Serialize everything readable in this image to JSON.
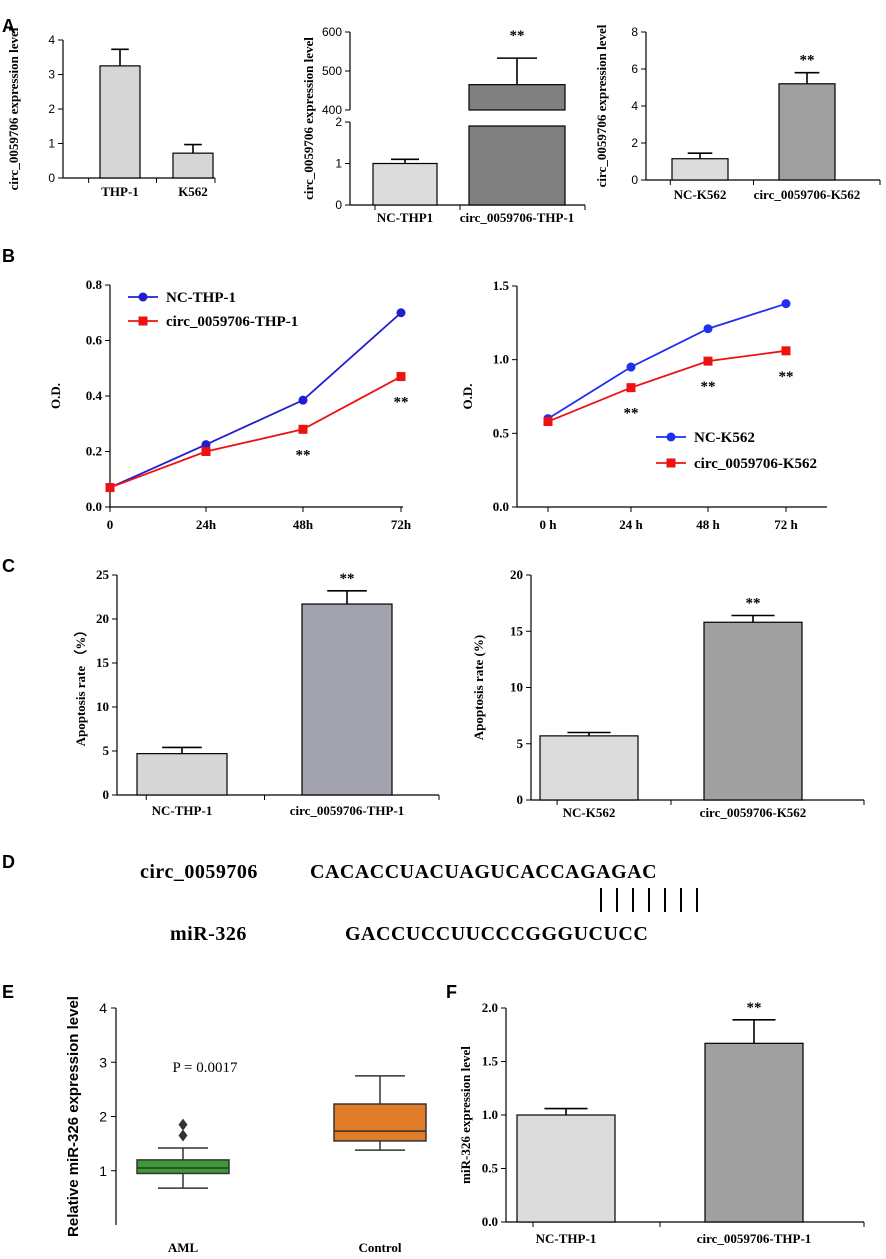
{
  "panels": {
    "A": "A",
    "B": "B",
    "C": "C",
    "D": "D",
    "E": "E",
    "F": "F"
  },
  "chart_data": [
    {
      "id": "A1",
      "type": "bar",
      "ylabel": "circ_0059706 expression level",
      "categories": [
        "THP-1",
        "K562"
      ],
      "values": [
        3.25,
        0.72
      ],
      "errors": [
        0.48,
        0.25
      ],
      "colors": [
        "#d6d6d6",
        "#d6d6d6"
      ],
      "ylim": [
        0,
        4
      ],
      "yticks": [
        0,
        1,
        2,
        3,
        4
      ],
      "stars": [
        "",
        ""
      ]
    },
    {
      "id": "A2",
      "type": "bar",
      "ylabel": "circ_0059706 expression level",
      "categories": [
        "NC-THP1",
        "circ_0059706-THP-1"
      ],
      "values": [
        1.0,
        465
      ],
      "errors": [
        0.1,
        68
      ],
      "colors": [
        "#dcdcdc",
        "#808080"
      ],
      "broken_axis": {
        "lower": [
          0,
          2
        ],
        "upper": [
          400,
          600
        ]
      },
      "yticks_lower": [
        0,
        1,
        2
      ],
      "yticks_upper": [
        400,
        500,
        600
      ],
      "stars": [
        "",
        "**"
      ]
    },
    {
      "id": "A3",
      "type": "bar",
      "ylabel": "circ_0059706 expression level",
      "categories": [
        "NC-K562",
        "circ_0059706-K562"
      ],
      "values": [
        1.15,
        5.2
      ],
      "errors": [
        0.3,
        0.6
      ],
      "colors": [
        "#dcdcdc",
        "#a0a0a0"
      ],
      "ylim": [
        0,
        8
      ],
      "yticks": [
        0,
        2,
        4,
        6,
        8
      ],
      "stars": [
        "",
        "**"
      ]
    },
    {
      "id": "B1",
      "type": "line",
      "ylabel": "O.D.",
      "x": [
        "0",
        "24h",
        "48h",
        "72h"
      ],
      "ylim": [
        0,
        0.8
      ],
      "yticks": [
        "0.0",
        "0.2",
        "0.4",
        "0.6",
        "0.8"
      ],
      "series": [
        {
          "name": "NC-THP-1",
          "color": "#1f1fcf",
          "marker": "circle",
          "values": [
            0.07,
            0.225,
            0.385,
            0.7
          ]
        },
        {
          "name": "circ_0059706-THP-1",
          "color": "#ee1111",
          "marker": "square",
          "values": [
            0.07,
            0.2,
            0.28,
            0.47
          ]
        }
      ],
      "stars": [
        "",
        "",
        "**",
        "**"
      ],
      "legend": "top-left"
    },
    {
      "id": "B2",
      "type": "line",
      "ylabel": "O.D.",
      "x": [
        "0 h",
        "24 h",
        "48 h",
        "72 h"
      ],
      "ylim": [
        0,
        1.5
      ],
      "yticks": [
        "0.0",
        "0.5",
        "1.0",
        "1.5"
      ],
      "series": [
        {
          "name": "NC-K562",
          "color": "#1f2fef",
          "marker": "circle",
          "values": [
            0.6,
            0.95,
            1.21,
            1.38
          ]
        },
        {
          "name": "circ_0059706-K562",
          "color": "#ee1111",
          "marker": "square",
          "values": [
            0.58,
            0.81,
            0.99,
            1.06
          ]
        }
      ],
      "stars": [
        "",
        "**",
        "**",
        "**"
      ],
      "legend": "bottom-right"
    },
    {
      "id": "C1",
      "type": "bar",
      "ylabel": "Apoptosis rate （%）",
      "categories": [
        "NC-THP-1",
        "circ_0059706-THP-1"
      ],
      "values": [
        4.7,
        21.7
      ],
      "errors": [
        0.7,
        1.5
      ],
      "colors": [
        "#d6d6d6",
        "#a3a3ad"
      ],
      "ylim": [
        0,
        25
      ],
      "yticks": [
        0,
        5,
        10,
        15,
        20,
        25
      ],
      "stars": [
        "",
        "**"
      ]
    },
    {
      "id": "C2",
      "type": "bar",
      "ylabel": "Apoptosis rate (%)",
      "categories": [
        "NC-K562",
        "circ_0059706-K562"
      ],
      "values": [
        5.7,
        15.8
      ],
      "errors": [
        0.3,
        0.6
      ],
      "colors": [
        "#dcdcdc",
        "#a0a0a0"
      ],
      "ylim": [
        0,
        20
      ],
      "yticks": [
        0,
        5,
        10,
        15,
        20
      ],
      "stars": [
        "",
        "**"
      ]
    },
    {
      "id": "E",
      "type": "box",
      "ylabel": "Relative miR-326 expression level",
      "categories": [
        "AML",
        "Control"
      ],
      "boxes": [
        {
          "whisker_low": 0.68,
          "q1": 0.95,
          "median": 1.05,
          "q3": 1.2,
          "whisker_high": 1.42,
          "outliers": [
            1.65,
            1.85
          ],
          "color": "#3a9a36"
        },
        {
          "whisker_low": 1.38,
          "q1": 1.55,
          "median": 1.73,
          "q3": 2.23,
          "whisker_high": 2.75,
          "outliers": [],
          "color": "#e07b28"
        }
      ],
      "ylim": [
        0,
        4
      ],
      "yticks": [
        1,
        2,
        3,
        4
      ],
      "annotation": "P = 0.0017"
    },
    {
      "id": "F",
      "type": "bar",
      "ylabel": "miR-326 expression level",
      "categories": [
        "NC-THP-1",
        "circ_0059706-THP-1"
      ],
      "values": [
        1.0,
        1.67
      ],
      "errors": [
        0.06,
        0.22
      ],
      "colors": [
        "#dcdcdc",
        "#a0a0a0"
      ],
      "ylim": [
        0,
        2.0
      ],
      "yticks": [
        "0.0",
        "0.5",
        "1.0",
        "1.5",
        "2.0"
      ],
      "stars": [
        "",
        "**"
      ]
    }
  ],
  "sequences": {
    "circ_label": "circ_0059706",
    "circ_seq": "CACACCUACUAGUCACCAGAGAC",
    "mir_label": "miR-326",
    "mir_seq": "GACCUCCUUCCCGGGUCUCC",
    "pair_count": 7
  }
}
